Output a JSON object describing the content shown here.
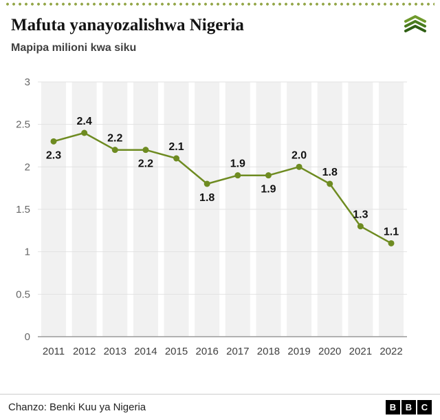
{
  "header": {
    "title": "Mafuta yanayozalishwa Nigeria",
    "subtitle": "Mapipa milioni kwa siku"
  },
  "brand": {
    "logo_name": "green-layers-logo",
    "logo_color": "#4a7c1f"
  },
  "chart_data": {
    "type": "line",
    "title": "Mafuta yanayozalishwa Nigeria",
    "ylabel": "Mapipa milioni kwa siku",
    "xlabel": "",
    "x": [
      "2011",
      "2012",
      "2013",
      "2014",
      "2015",
      "2016",
      "2017",
      "2018",
      "2019",
      "2020",
      "2021",
      "2022"
    ],
    "values": [
      2.3,
      2.4,
      2.2,
      2.2,
      2.1,
      1.8,
      1.9,
      1.9,
      2.0,
      1.8,
      1.3,
      1.1
    ],
    "point_labels": [
      "2.3",
      "2.4",
      "2.2",
      "2.2",
      "2.1",
      "1.8",
      "1.9",
      "1.9",
      "2.0",
      "1.8",
      "1.3",
      "1.1"
    ],
    "label_positions": [
      "below",
      "above",
      "above",
      "below",
      "above",
      "below",
      "above",
      "below",
      "above",
      "above",
      "above",
      "above"
    ],
    "ylim": [
      0,
      3
    ],
    "yticks": [
      0,
      0.5,
      1,
      1.5,
      2,
      2.5,
      3
    ],
    "ytick_labels": [
      "0",
      "0.5",
      "1",
      "1.5",
      "2",
      "2.5",
      "3"
    ],
    "grid": true,
    "legend": "none",
    "line_color": "#6e8b21",
    "point_color": "#6e8b21",
    "band_color": "#f1f1f1",
    "grid_color": "#e2e2e2",
    "axis_color": "#999999",
    "tick_label_color": "#666666",
    "x_label_color": "#404040",
    "value_label_color": "#111111"
  },
  "footer": {
    "source": "Chanzo: Benki Kuu ya Nigeria",
    "bbc_letters": [
      "B",
      "B",
      "C"
    ]
  }
}
